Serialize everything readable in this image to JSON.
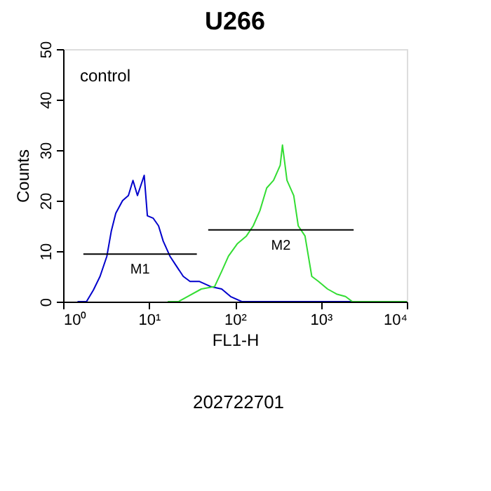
{
  "chart_data": {
    "type": "line",
    "title": "U266",
    "xlabel": "FL1-H",
    "ylabel": "Counts",
    "annotations": [
      "control",
      "202722701"
    ],
    "log": "x",
    "xlim": [
      1,
      10000
    ],
    "ylim": [
      0,
      50
    ],
    "xticks": [
      {
        "value": 1,
        "label": "10⁰"
      },
      {
        "value": 10,
        "label": "10¹"
      },
      {
        "value": 100,
        "label": "10²"
      },
      {
        "value": 1000,
        "label": "10³"
      },
      {
        "value": 10000,
        "label": "10⁴"
      }
    ],
    "yticks": [
      0,
      10,
      20,
      30,
      40,
      50
    ],
    "grid": false,
    "marker": "none",
    "line_style": "solid",
    "series": [
      {
        "color": "#0000cc",
        "x": [
          1.47,
          1.87,
          2.25,
          2.69,
          3.23,
          3.64,
          4.1,
          4.92,
          5.75,
          6.5,
          7.33,
          8.78,
          9.56,
          11.2,
          12.9,
          14.6,
          17.5,
          20.9,
          25,
          30,
          38.3,
          51.8,
          70,
          89,
          120,
          403,
          1500,
          10000
        ],
        "values": [
          0,
          0,
          2.3,
          5,
          9,
          14,
          17.5,
          20,
          21,
          24,
          21,
          25,
          17,
          16.5,
          15,
          12,
          9,
          7,
          5,
          4,
          4,
          3,
          2.5,
          1,
          0,
          0,
          0,
          0
        ]
      },
      {
        "color": "#33dd33",
        "x": [
          16.5,
          22,
          28,
          40.6,
          58,
          70,
          84,
          107,
          136,
          163,
          195,
          234,
          281,
          336,
          357,
          403,
          483,
          545,
          653,
          783,
          938,
          1194,
          1521,
          1936,
          2322,
          10000
        ],
        "values": [
          0,
          0,
          1,
          2.5,
          3,
          6,
          9,
          11.5,
          13,
          15,
          18,
          22.5,
          24,
          27,
          31,
          24,
          21,
          15,
          13,
          5,
          4,
          2.5,
          1.5,
          1,
          0,
          0
        ]
      },
      {
        "name": "M1",
        "color": "#000000",
        "x": [
          1.72,
          36
        ],
        "values": [
          9.4,
          9.4
        ]
      },
      {
        "name": "M2",
        "color": "#000000",
        "x": [
          48.8,
          2405
        ],
        "values": [
          14.2,
          14.2
        ]
      }
    ]
  }
}
